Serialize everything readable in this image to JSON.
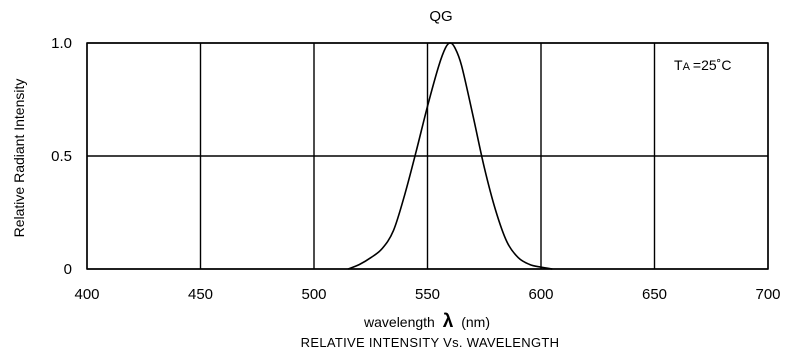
{
  "chart_data": {
    "type": "line",
    "title": "QG",
    "xlabel_text": "wavelength",
    "xlabel_symbol": "λ",
    "xlabel_unit": "(nm)",
    "ylabel": "Relative Radiant Intensity",
    "caption": "RELATIVE INTENSITY Vs. WAVELENGTH",
    "annotation": {
      "main": "T",
      "sub": "A",
      "rest": "=25˚C"
    },
    "xlim": [
      400,
      700
    ],
    "ylim": [
      0,
      1.0
    ],
    "x_ticks": [
      400,
      450,
      500,
      550,
      600,
      650,
      700
    ],
    "x_tick_labels": [
      "400",
      "450",
      "500",
      "550",
      "600",
      "650",
      "700"
    ],
    "y_ticks": [
      0,
      0.5,
      1.0
    ],
    "y_tick_labels": [
      "0",
      "0.5",
      "1.0"
    ],
    "grid": true,
    "series": [
      {
        "x": [
          515,
          520,
          525,
          530,
          535,
          540,
          545,
          550,
          555,
          558,
          560,
          562,
          565,
          570,
          575,
          580,
          585,
          590,
          595,
          600,
          605
        ],
        "y": [
          0.0,
          0.02,
          0.05,
          0.09,
          0.17,
          0.33,
          0.52,
          0.72,
          0.9,
          0.98,
          1.0,
          0.98,
          0.9,
          0.68,
          0.45,
          0.26,
          0.12,
          0.05,
          0.02,
          0.008,
          0.0
        ]
      }
    ]
  }
}
